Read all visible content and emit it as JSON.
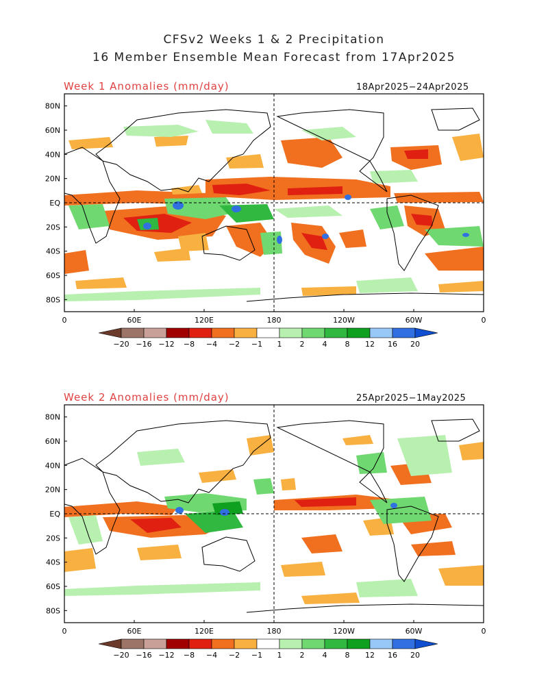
{
  "title_line1": "CFSv2 Weeks 1 & 2 Precipitation",
  "title_line2": "16 Member Ensemble Mean Forecast from 17Apr2025",
  "panels": [
    {
      "label": "Week 1 Anomalies (mm/day)",
      "date_range": "18Apr2025−24Apr2025"
    },
    {
      "label": "Week 2 Anomalies (mm/day)",
      "date_range": "25Apr2025−1May2025"
    }
  ],
  "lat_labels": [
    "80N",
    "60N",
    "40N",
    "20N",
    "EQ",
    "20S",
    "40S",
    "60S",
    "80S"
  ],
  "lon_labels": [
    "0",
    "60E",
    "120E",
    "180",
    "120W",
    "60W",
    "0"
  ],
  "colorbar": {
    "labels": [
      "−20",
      "−16",
      "−12",
      "−8",
      "−4",
      "−2",
      "−1",
      "1",
      "2",
      "4",
      "8",
      "12",
      "16",
      "20"
    ],
    "colors": [
      "#6b3a2a",
      "#9c7468",
      "#c8a098",
      "#a00000",
      "#e02010",
      "#f07020",
      "#f8b040",
      "#ffffff",
      "#b8f0b0",
      "#70d870",
      "#30b840",
      "#10a020",
      "#98c8f8",
      "#3070e0",
      "#1050d0"
    ]
  }
}
